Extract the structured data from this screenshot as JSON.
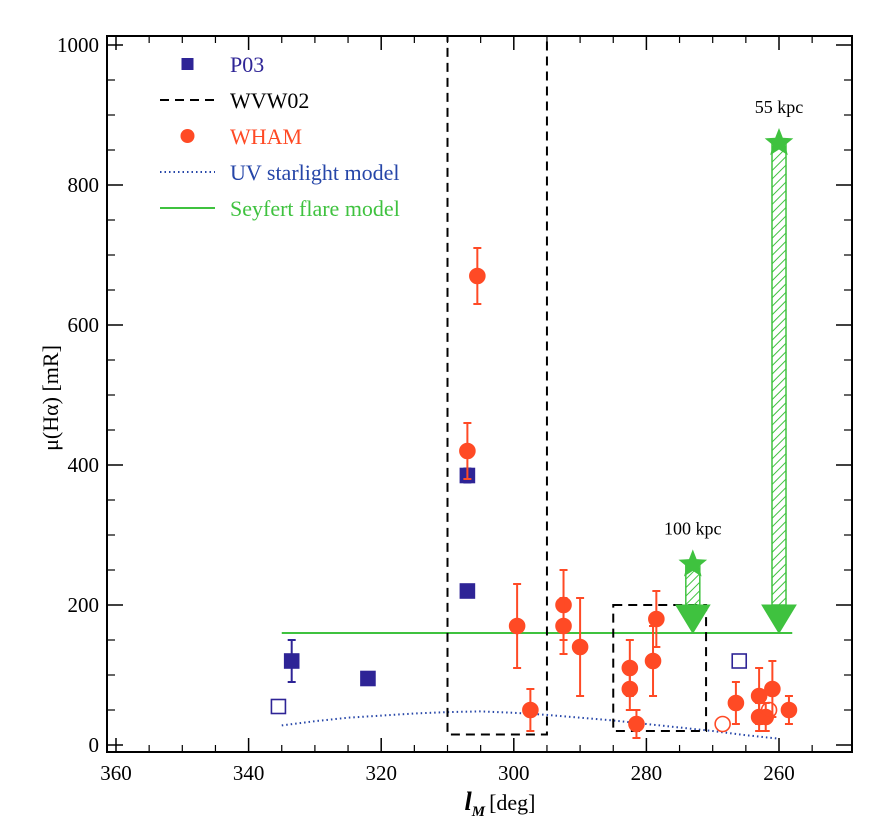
{
  "chart_data": {
    "type": "scatter",
    "title": "",
    "xlabel_main": "l",
    "xlabel_sub": "M",
    "xlabel_unit": "[deg]",
    "ylabel": "μ(Hα) [mR]",
    "xlim": [
      360,
      250
    ],
    "ylim": [
      0,
      1000
    ],
    "x_reversed": true,
    "x_ticks": [
      360,
      340,
      320,
      300,
      280,
      260
    ],
    "y_ticks": [
      0,
      200,
      400,
      600,
      800,
      1000
    ],
    "legend_position": "top-left",
    "legend": [
      {
        "label": "P03",
        "marker": "square",
        "color": "#2e2496"
      },
      {
        "label": "WVW02",
        "marker": "dashed-line",
        "color": "#000000"
      },
      {
        "label": "WHAM",
        "marker": "circle",
        "color": "#ff4a25"
      },
      {
        "label": "UV starlight model",
        "marker": "dotted-line",
        "color": "#2646a8"
      },
      {
        "label": "Seyfert flare model",
        "marker": "solid-line",
        "color": "#3fc23f"
      }
    ],
    "series": [
      {
        "name": "P03",
        "color": "#2e2496",
        "points": [
          {
            "x": 333.5,
            "y": 120,
            "ylo": 90,
            "yhi": 150,
            "filled": true
          },
          {
            "x": 322,
            "y": 95,
            "ylo": 90,
            "yhi": 100,
            "filled": true
          },
          {
            "x": 307,
            "y": 385,
            "ylo": 375,
            "yhi": 395,
            "filled": true
          },
          {
            "x": 307,
            "y": 220,
            "ylo": 212,
            "yhi": 228,
            "filled": true
          },
          {
            "x": 335.5,
            "y": 55,
            "filled": false
          },
          {
            "x": 266,
            "y": 120,
            "filled": false
          }
        ]
      },
      {
        "name": "WHAM",
        "color": "#ff4a25",
        "points": [
          {
            "x": 307,
            "y": 420,
            "ylo": 380,
            "yhi": 460,
            "filled": true
          },
          {
            "x": 305.5,
            "y": 670,
            "ylo": 630,
            "yhi": 710,
            "filled": true
          },
          {
            "x": 299.5,
            "y": 170,
            "ylo": 110,
            "yhi": 230,
            "filled": true
          },
          {
            "x": 297.5,
            "y": 50,
            "ylo": 20,
            "yhi": 80,
            "filled": true
          },
          {
            "x": 292.5,
            "y": 200,
            "ylo": 150,
            "yhi": 250,
            "filled": true
          },
          {
            "x": 292.5,
            "y": 170,
            "ylo": 130,
            "yhi": 210,
            "filled": true
          },
          {
            "x": 290,
            "y": 140,
            "ylo": 70,
            "yhi": 210,
            "filled": true
          },
          {
            "x": 282.5,
            "y": 110,
            "ylo": 70,
            "yhi": 150,
            "filled": true
          },
          {
            "x": 282.5,
            "y": 80,
            "ylo": 50,
            "yhi": 110,
            "filled": true
          },
          {
            "x": 281.5,
            "y": 30,
            "ylo": 10,
            "yhi": 50,
            "filled": true
          },
          {
            "x": 279,
            "y": 120,
            "ylo": 70,
            "yhi": 170,
            "filled": true
          },
          {
            "x": 278.5,
            "y": 180,
            "ylo": 140,
            "yhi": 220,
            "filled": true
          },
          {
            "x": 266.5,
            "y": 60,
            "ylo": 30,
            "yhi": 90,
            "filled": true
          },
          {
            "x": 263,
            "y": 70,
            "ylo": 30,
            "yhi": 110,
            "filled": true
          },
          {
            "x": 263,
            "y": 40,
            "ylo": 20,
            "yhi": 60,
            "filled": true
          },
          {
            "x": 262,
            "y": 40,
            "ylo": 20,
            "yhi": 60,
            "filled": true
          },
          {
            "x": 261,
            "y": 80,
            "ylo": 40,
            "yhi": 120,
            "filled": true
          },
          {
            "x": 258.5,
            "y": 50,
            "ylo": 30,
            "yhi": 70,
            "filled": true
          },
          {
            "x": 268.5,
            "y": 30,
            "filled": false
          },
          {
            "x": 261.5,
            "y": 50,
            "filled": false
          }
        ]
      }
    ],
    "wvw02_boxes": [
      {
        "x1": 310,
        "x2": 295,
        "y1": 15,
        "y2": 1000
      },
      {
        "x1": 285,
        "x2": 271,
        "y1": 20,
        "y2": 200
      }
    ],
    "seyfert_flare_model": {
      "x": [
        335,
        258
      ],
      "y": [
        160,
        160
      ],
      "color": "#3fc23f"
    },
    "uv_starlight_model": {
      "color": "#2646a8",
      "x": [
        335,
        330,
        325,
        320,
        315,
        310,
        305,
        300,
        295,
        290,
        285,
        280,
        275,
        270,
        265,
        260
      ],
      "y": [
        28,
        34,
        39,
        42,
        45,
        47,
        48,
        46,
        43,
        39,
        35,
        30,
        25,
        20,
        14,
        9
      ]
    },
    "distance_markers": [
      {
        "label": "100 kpc",
        "x": 273,
        "y_star": 258,
        "y_arrow_tip": 160
      },
      {
        "label": "55 kpc",
        "x": 260,
        "y_star": 860,
        "y_arrow_tip": 160
      }
    ]
  }
}
